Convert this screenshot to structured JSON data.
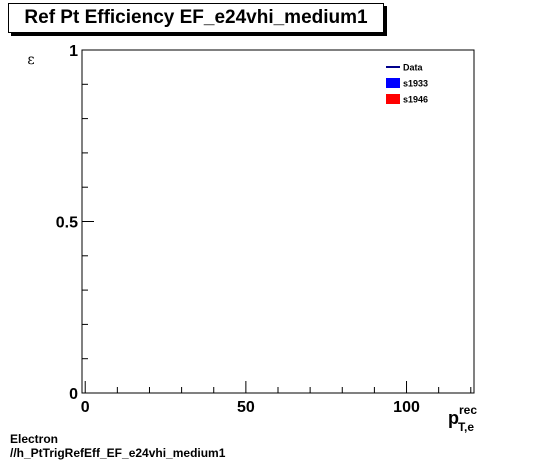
{
  "title": "Ref Pt Efficiency EF_e24vhi_medium1",
  "footer": {
    "line1": "Electron",
    "line2": "//h_PtTrigRefEff_EF_e24vhi_medium1"
  },
  "chart_data": {
    "type": "line",
    "title": "Ref Pt Efficiency EF_e24vhi_medium1",
    "ylabel": "ε",
    "xlabel": {
      "main": "p",
      "sup": "rec",
      "sub": "T,e"
    },
    "xlim": [
      -1,
      121
    ],
    "ylim": [
      0,
      1
    ],
    "x_ticks": [
      {
        "value": 0,
        "label": "0"
      },
      {
        "value": 50,
        "label": "50"
      },
      {
        "value": 100,
        "label": "100"
      }
    ],
    "y_ticks": [
      {
        "value": 0,
        "label": "0"
      },
      {
        "value": 0.5,
        "label": "0.5"
      },
      {
        "value": 1,
        "label": "1"
      }
    ],
    "grid": false,
    "legend_position": "top-right",
    "legend": [
      {
        "label": "Data",
        "style": "line",
        "color": "#00008b"
      },
      {
        "label": "s1933",
        "style": "box",
        "color": "#0000ff"
      },
      {
        "label": "s1946",
        "style": "box",
        "color": "#ff0000"
      }
    ],
    "series": []
  }
}
